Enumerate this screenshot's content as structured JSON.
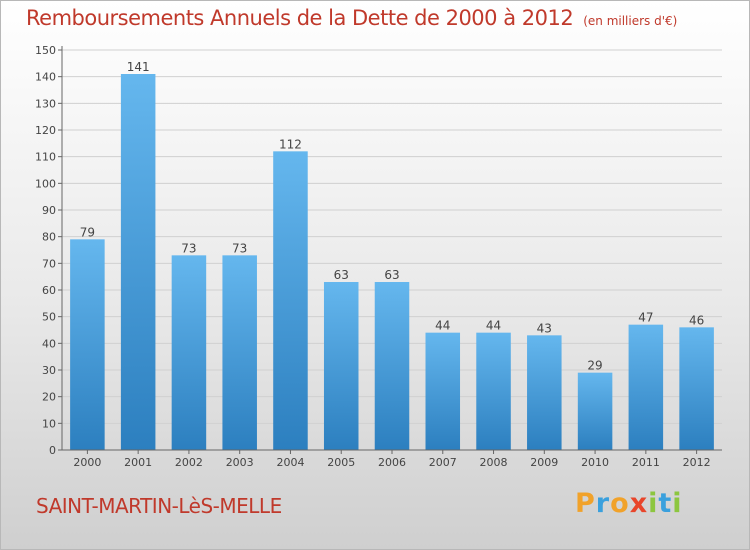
{
  "title": "Remboursements Annuels de la Dette de 2000 à 2012",
  "unit": "(en milliers d'€)",
  "commune": "SAINT-MARTIN-LèS-MELLE",
  "logo": {
    "text": "Proxiti",
    "letters": [
      "P",
      "r",
      "o",
      "x",
      "i",
      "t",
      "i"
    ],
    "colors": [
      "#f1a22a",
      "#3aa0dd",
      "#f1a22a",
      "#e8452a",
      "#8cc63f",
      "#3aa0dd",
      "#8cc63f"
    ]
  },
  "colors": {
    "bar_light": "#65b7ee",
    "bar_dark": "#2c7fbf",
    "accent_text": "#c0392b",
    "axis": "#666666",
    "grid": "#d0d0d0"
  },
  "chart_data": {
    "type": "bar",
    "title": "Remboursements Annuels de la Dette de 2000 à 2012",
    "categories": [
      "2000",
      "2001",
      "2002",
      "2003",
      "2004",
      "2005",
      "2006",
      "2007",
      "2008",
      "2009",
      "2010",
      "2011",
      "2012"
    ],
    "values": [
      79,
      141,
      73,
      73,
      112,
      63,
      63,
      44,
      44,
      43,
      29,
      47,
      46
    ],
    "ylim": [
      0,
      150
    ],
    "yticks": [
      0,
      10,
      20,
      30,
      40,
      50,
      60,
      70,
      80,
      90,
      100,
      110,
      120,
      130,
      140,
      150
    ],
    "xlabel": "",
    "ylabel": "",
    "grid": true
  }
}
